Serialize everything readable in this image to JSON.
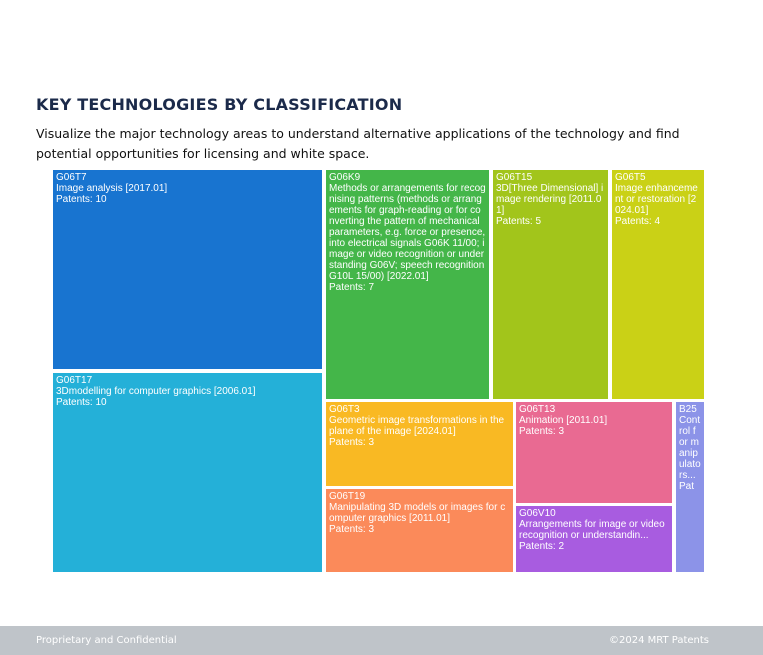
{
  "header": {
    "title": "KEY TECHNOLOGIES BY CLASSIFICATION",
    "subtitle": "Visualize the major technology areas to understand alternative applications of the technology and find potential opportunities for licensing and white space."
  },
  "footer": {
    "left": "Proprietary and Confidential",
    "right": "©2024 MRT Patents"
  },
  "chart_data": {
    "type": "treemap",
    "title": "KEY TECHNOLOGIES BY CLASSIFICATION",
    "value_label": "Patents",
    "items": [
      {
        "code": "G06T7",
        "label": "Image analysis [2017.01]",
        "patents_text": "Patents: 10",
        "value": 10,
        "color": "#1874d0"
      },
      {
        "code": "G06T17",
        "label": "3Dmodelling for computer graphics [2006.01]",
        "patents_text": "Patents: 10",
        "value": 10,
        "color": "#24b0d8"
      },
      {
        "code": "G06K9",
        "label": "Methods or arrangements for recognising patterns (methods or arrangements for graph-reading or for converting the pattern of mechanical parameters, e.g. force or presence, into electrical signals G06K 11/00; image or video recognition or understanding G06V; speech recognition G10L 15/00) [2022.01]",
        "patents_text": "Patents: 7",
        "value": 7,
        "color": "#44b649"
      },
      {
        "code": "G06T15",
        "label": "3D[Three Dimensional] image rendering [2011.01]",
        "patents_text": "Patents: 5",
        "value": 5,
        "color": "#a2c51b"
      },
      {
        "code": "G06T5",
        "label": "Image enhancement or restoration [2024.01]",
        "patents_text": "Patents: 4",
        "value": 4,
        "color": "#cad116"
      },
      {
        "code": "G06T3",
        "label": "Geometric image transformations in the plane of the image [2024.01]",
        "patents_text": "Patents: 3",
        "value": 3,
        "color": "#f9b923"
      },
      {
        "code": "G06T19",
        "label": "Manipulating 3D models or images for computer graphics [2011.01]",
        "patents_text": "Patents: 3",
        "value": 3,
        "color": "#fb8a5a"
      },
      {
        "code": "G06T13",
        "label": "Animation [2011.01]",
        "patents_text": "Patents: 3",
        "value": 3,
        "color": "#e96a92"
      },
      {
        "code": "G06V10",
        "label": "Arrangements for image or video recognition or understandin...",
        "patents_text": "Patents: 2",
        "value": 2,
        "color": "#a85ce0"
      },
      {
        "code": "B25",
        "label": "Control for manipulators...",
        "patents_text": "Pat",
        "value": 1,
        "color": "#8c93e8"
      }
    ]
  }
}
